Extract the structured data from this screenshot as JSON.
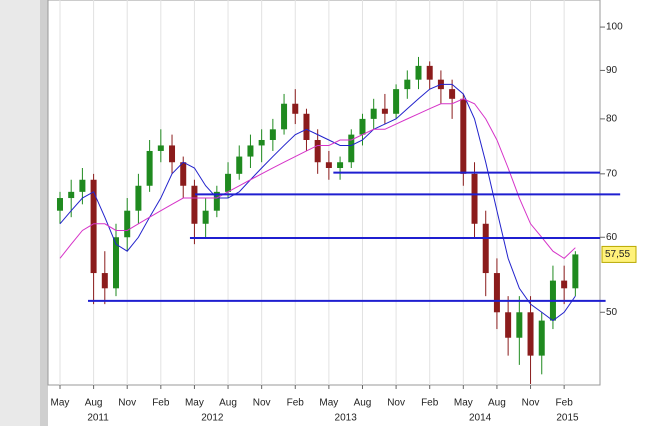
{
  "chart_data": {
    "type": "candlestick",
    "log_scale": true,
    "ylim": [
      41.9,
      106.8
    ],
    "yticks": [
      50,
      60,
      70,
      80,
      90,
      100
    ],
    "xlim": [
      -1.07,
      48.2
    ],
    "xticks": [
      {
        "value": 0,
        "label": "May"
      },
      {
        "value": 3,
        "label": "Aug"
      },
      {
        "value": 6,
        "label": "Nov"
      },
      {
        "value": 9,
        "label": "Feb"
      },
      {
        "value": 12,
        "label": "May"
      },
      {
        "value": 15,
        "label": "Aug"
      },
      {
        "value": 18,
        "label": "Nov"
      },
      {
        "value": 21,
        "label": "Feb"
      },
      {
        "value": 24,
        "label": "May"
      },
      {
        "value": 27,
        "label": "Aug"
      },
      {
        "value": 30,
        "label": "Nov"
      },
      {
        "value": 33,
        "label": "Feb"
      },
      {
        "value": 36,
        "label": "May"
      },
      {
        "value": 39,
        "label": "Aug"
      },
      {
        "value": 42,
        "label": "Nov"
      },
      {
        "value": 45,
        "label": "Feb"
      }
    ],
    "year_labels": [
      {
        "value": 3.4,
        "label": "2011"
      },
      {
        "value": 13.6,
        "label": "2012"
      },
      {
        "value": 25.5,
        "label": "2013"
      },
      {
        "value": 37.5,
        "label": "2014"
      },
      {
        "value": 45.3,
        "label": "2015"
      }
    ],
    "up_color": "#1f8a1f",
    "down_color": "#8b1c1c",
    "open": [
      64,
      66,
      67,
      69,
      55,
      53,
      60,
      64,
      68,
      74,
      75,
      72,
      68,
      62,
      64,
      67,
      70,
      73,
      75,
      76,
      78,
      83,
      81,
      76,
      72,
      71,
      72,
      77,
      80,
      82,
      81,
      86,
      88,
      91,
      88,
      86,
      84,
      70,
      62,
      55,
      50,
      47,
      50,
      45,
      49,
      54,
      53
    ],
    "high": [
      67,
      69,
      71,
      70,
      58,
      62,
      66,
      70,
      76,
      78,
      77,
      73,
      69,
      66,
      68,
      72,
      75,
      77,
      78,
      80,
      85,
      86,
      82,
      78,
      74,
      73,
      78,
      81,
      84,
      85,
      87,
      90,
      93,
      92,
      90,
      88,
      85,
      72,
      64,
      57,
      52,
      52,
      52,
      50,
      56,
      56,
      58
    ],
    "low": [
      62,
      63,
      65,
      51,
      51,
      52,
      58,
      62,
      67,
      72,
      70,
      66,
      59,
      60,
      63,
      66,
      69,
      71,
      72,
      74,
      77,
      79,
      74,
      70,
      69,
      69,
      71,
      75,
      78,
      79,
      80,
      84,
      86,
      86,
      83,
      80,
      68,
      60,
      52,
      48,
      45,
      44,
      42,
      43,
      48,
      51,
      52
    ],
    "close": [
      66,
      67,
      69,
      55,
      53,
      60,
      64,
      68,
      74,
      75,
      72,
      68,
      62,
      64,
      67,
      70,
      73,
      75,
      76,
      78,
      83,
      81,
      76,
      72,
      71,
      72,
      77,
      80,
      82,
      81,
      86,
      88,
      91,
      88,
      86,
      84,
      70,
      62,
      55,
      50,
      47,
      50,
      45,
      49,
      54,
      53,
      57.55
    ],
    "last_price": {
      "value": 57.55,
      "label": "57,55"
    },
    "series": [
      {
        "color": "#2222cc",
        "values": [
          62,
          64,
          66,
          67,
          63,
          59,
          58,
          60,
          63,
          66,
          70,
          72,
          71,
          68,
          66,
          66,
          67,
          69,
          71,
          73,
          75,
          77,
          78,
          77,
          76,
          75,
          75,
          76,
          78,
          79,
          80,
          82,
          84,
          86,
          87,
          87,
          85,
          80,
          72,
          64,
          57,
          53,
          51,
          50,
          49,
          50,
          52
        ]
      },
      {
        "color": "#d633c8",
        "values": [
          57,
          59,
          61,
          62,
          62,
          61,
          61,
          62,
          63,
          64,
          65,
          66,
          66,
          66,
          66,
          67,
          68,
          69,
          70,
          71,
          72,
          73,
          74,
          75,
          75,
          76,
          76,
          77,
          78,
          78,
          79,
          80,
          81,
          82,
          83,
          83,
          84,
          83,
          80,
          76,
          71,
          66,
          62,
          60,
          58,
          57,
          58.5
        ]
      }
    ],
    "levels": {
      "color": "#1f1fd0",
      "lines": [
        {
          "value": 70.2,
          "from": 24.4,
          "to": 48.2
        },
        {
          "value": 66.6,
          "from": 12.05,
          "to": 50
        },
        {
          "value": 59.9,
          "from": 11.6,
          "to": 48.2
        },
        {
          "value": 51.4,
          "from": 2.5,
          "to": 48.7
        }
      ]
    }
  }
}
